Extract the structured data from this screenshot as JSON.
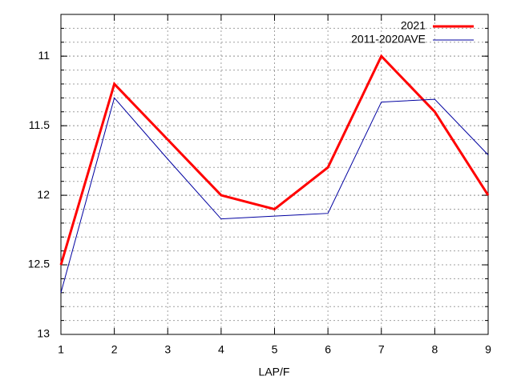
{
  "chart_data": {
    "type": "line",
    "xlabel": "LAP/F",
    "x": [
      1,
      2,
      3,
      4,
      5,
      6,
      7,
      8,
      9
    ],
    "series": [
      {
        "name": "2021",
        "color": "#ff0000",
        "values": [
          12.5,
          11.2,
          11.6,
          12.0,
          12.1,
          11.8,
          11.0,
          11.4,
          12.0
        ]
      },
      {
        "name": "2011-2020AVE",
        "color": "#0000a0",
        "values": [
          12.7,
          11.3,
          11.74,
          12.17,
          12.15,
          12.13,
          11.33,
          11.31,
          11.71
        ]
      }
    ],
    "xlim": [
      1,
      9
    ],
    "xticks": [
      1,
      2,
      3,
      4,
      5,
      6,
      7,
      8,
      9
    ],
    "ylim": [
      13,
      10.7
    ],
    "yticks": [
      11,
      11.5,
      12,
      12.5,
      13
    ],
    "grid": true,
    "yminor": 5,
    "legend": "top-right"
  }
}
